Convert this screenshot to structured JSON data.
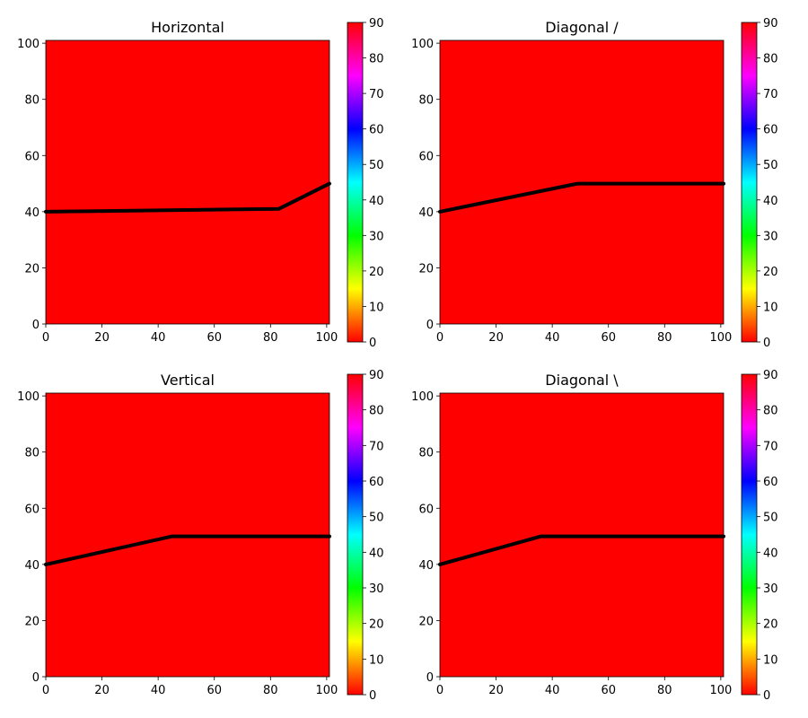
{
  "chart_data": [
    {
      "type": "heatmap",
      "title": "Horizontal",
      "xlim": [
        0,
        101
      ],
      "ylim": [
        0,
        101
      ],
      "xticks": [
        0,
        20,
        40,
        60,
        80,
        100
      ],
      "yticks": [
        0,
        20,
        40,
        60,
        80,
        100
      ],
      "fill_value": 0,
      "line": {
        "x": [
          0,
          83,
          101
        ],
        "y": [
          40,
          41,
          50
        ]
      },
      "colorbar": {
        "min": 0,
        "max": 90,
        "ticks": [
          0,
          10,
          20,
          30,
          40,
          50,
          60,
          70,
          80,
          90
        ]
      }
    },
    {
      "type": "heatmap",
      "title": "Diagonal /",
      "xlim": [
        0,
        101
      ],
      "ylim": [
        0,
        101
      ],
      "xticks": [
        0,
        20,
        40,
        60,
        80,
        100
      ],
      "yticks": [
        0,
        20,
        40,
        60,
        80,
        100
      ],
      "fill_value": 0,
      "line": {
        "x": [
          0,
          49,
          101
        ],
        "y": [
          40,
          50,
          50
        ]
      },
      "colorbar": {
        "min": 0,
        "max": 90,
        "ticks": [
          0,
          10,
          20,
          30,
          40,
          50,
          60,
          70,
          80,
          90
        ]
      }
    },
    {
      "type": "heatmap",
      "title": "Vertical",
      "xlim": [
        0,
        101
      ],
      "ylim": [
        0,
        101
      ],
      "xticks": [
        0,
        20,
        40,
        60,
        80,
        100
      ],
      "yticks": [
        0,
        20,
        40,
        60,
        80,
        100
      ],
      "fill_value": 0,
      "line": {
        "x": [
          0,
          45,
          101
        ],
        "y": [
          40,
          50,
          50
        ]
      },
      "colorbar": {
        "min": 0,
        "max": 90,
        "ticks": [
          0,
          10,
          20,
          30,
          40,
          50,
          60,
          70,
          80,
          90
        ]
      }
    },
    {
      "type": "heatmap",
      "title": "Diagonal \\",
      "xlim": [
        0,
        101
      ],
      "ylim": [
        0,
        101
      ],
      "xticks": [
        0,
        20,
        40,
        60,
        80,
        100
      ],
      "yticks": [
        0,
        20,
        40,
        60,
        80,
        100
      ],
      "fill_value": 0,
      "line": {
        "x": [
          0,
          36,
          101
        ],
        "y": [
          40,
          50,
          50
        ]
      },
      "colorbar": {
        "min": 0,
        "max": 90,
        "ticks": [
          0,
          10,
          20,
          30,
          40,
          50,
          60,
          70,
          80,
          90
        ]
      }
    }
  ],
  "colormap": {
    "name": "hsv",
    "stops": [
      "#ff0000",
      "#ffff00",
      "#00ff00",
      "#00ffff",
      "#0000ff",
      "#ff00ff",
      "#ff0000"
    ],
    "line_color": "#000000"
  }
}
